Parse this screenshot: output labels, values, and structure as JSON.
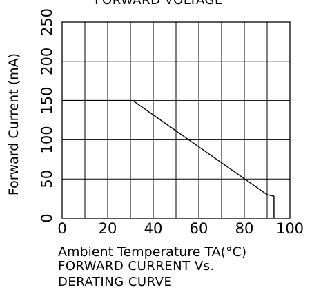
{
  "chart_data": {
    "type": "line",
    "top_title": "FORWARD VOLTAGE",
    "caption_lines": [
      "FORWARD CURRENT Vs.",
      "DERATING CURVE"
    ],
    "xlabel": "Ambient Temperature TA(°C)",
    "ylabel": "Forward Current (mA)",
    "xlim": [
      0,
      100
    ],
    "ylim": [
      0,
      250
    ],
    "x_ticks": [
      "0",
      "20",
      "40",
      "60",
      "80",
      "100"
    ],
    "y_ticks": [
      "0",
      "50",
      "100",
      "150",
      "200",
      "250"
    ],
    "grid": true,
    "series": [
      {
        "x": [
          0,
          31,
          90,
          93,
          93
        ],
        "y": [
          150,
          150,
          30,
          28,
          0
        ]
      }
    ]
  }
}
